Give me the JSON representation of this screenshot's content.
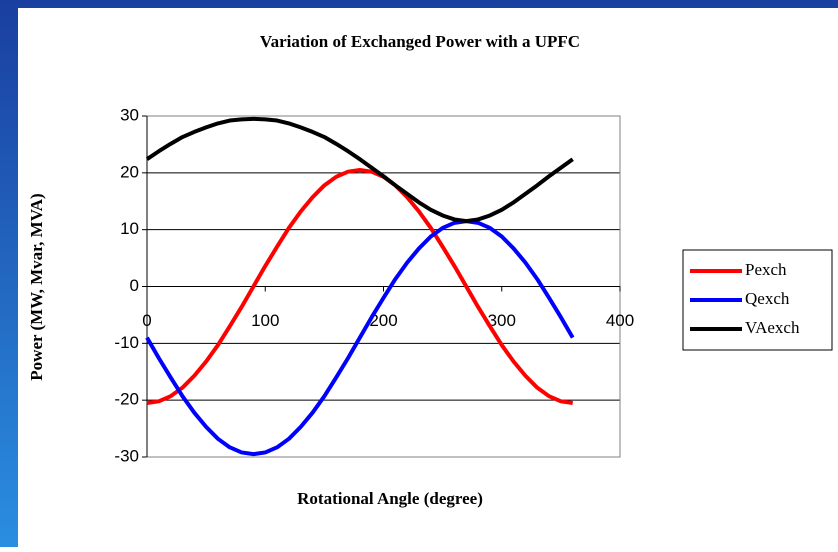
{
  "chart_data": {
    "type": "line",
    "title": "Variation of Exchanged Power with a UPFC",
    "x_label": "Rotational Angle (degree)",
    "y_label": "Power (MW, Mvar, MVA)",
    "x": [
      0,
      10,
      20,
      30,
      40,
      50,
      60,
      70,
      80,
      90,
      100,
      110,
      120,
      130,
      140,
      150,
      160,
      170,
      180,
      190,
      200,
      210,
      220,
      230,
      240,
      250,
      260,
      270,
      280,
      290,
      300,
      310,
      320,
      330,
      340,
      350,
      360
    ],
    "series": [
      {
        "name": "Pexch",
        "color": "#ff0000",
        "values": [
          -20.5,
          -20.2,
          -19.3,
          -17.8,
          -15.7,
          -13.2,
          -10.3,
          -7.0,
          -3.6,
          0,
          3.6,
          7.0,
          10.3,
          13.2,
          15.7,
          17.8,
          19.3,
          20.2,
          20.5,
          20.2,
          19.3,
          17.8,
          15.7,
          13.2,
          10.3,
          7.0,
          3.6,
          0,
          -3.6,
          -7.0,
          -10.3,
          -13.2,
          -15.7,
          -17.8,
          -19.3,
          -20.2,
          -20.5
        ]
      },
      {
        "name": "Qexch",
        "color": "#0000ff",
        "values": [
          -9,
          -12.6,
          -16.0,
          -19.3,
          -22.2,
          -24.7,
          -26.8,
          -28.3,
          -29.2,
          -29.5,
          -29.2,
          -28.3,
          -26.8,
          -24.7,
          -22.2,
          -19.3,
          -16.0,
          -12.6,
          -9,
          -5.4,
          -2.0,
          1.3,
          4.2,
          6.7,
          8.8,
          10.3,
          11.2,
          11.5,
          11.2,
          10.3,
          8.8,
          6.7,
          4.2,
          1.3,
          -2.0,
          -5.4,
          -9
        ]
      },
      {
        "name": "VAexch",
        "color": "#000000",
        "values": [
          22.4,
          23.8,
          25.1,
          26.3,
          27.2,
          28.0,
          28.7,
          29.2,
          29.4,
          29.5,
          29.4,
          29.2,
          28.7,
          28.0,
          27.2,
          26.3,
          25.1,
          23.8,
          22.4,
          20.9,
          19.4,
          17.8,
          16.3,
          14.8,
          13.5,
          12.5,
          11.8,
          11.5,
          11.8,
          12.5,
          13.5,
          14.8,
          16.3,
          17.8,
          19.4,
          20.9,
          22.4
        ]
      }
    ],
    "xlim": [
      0,
      400
    ],
    "xticks": [
      0,
      100,
      200,
      300,
      400
    ],
    "ylim": [
      -30,
      30
    ],
    "yticks": [
      -30,
      -20,
      -10,
      0,
      10,
      20,
      30
    ],
    "grid": true,
    "legend": "right"
  }
}
